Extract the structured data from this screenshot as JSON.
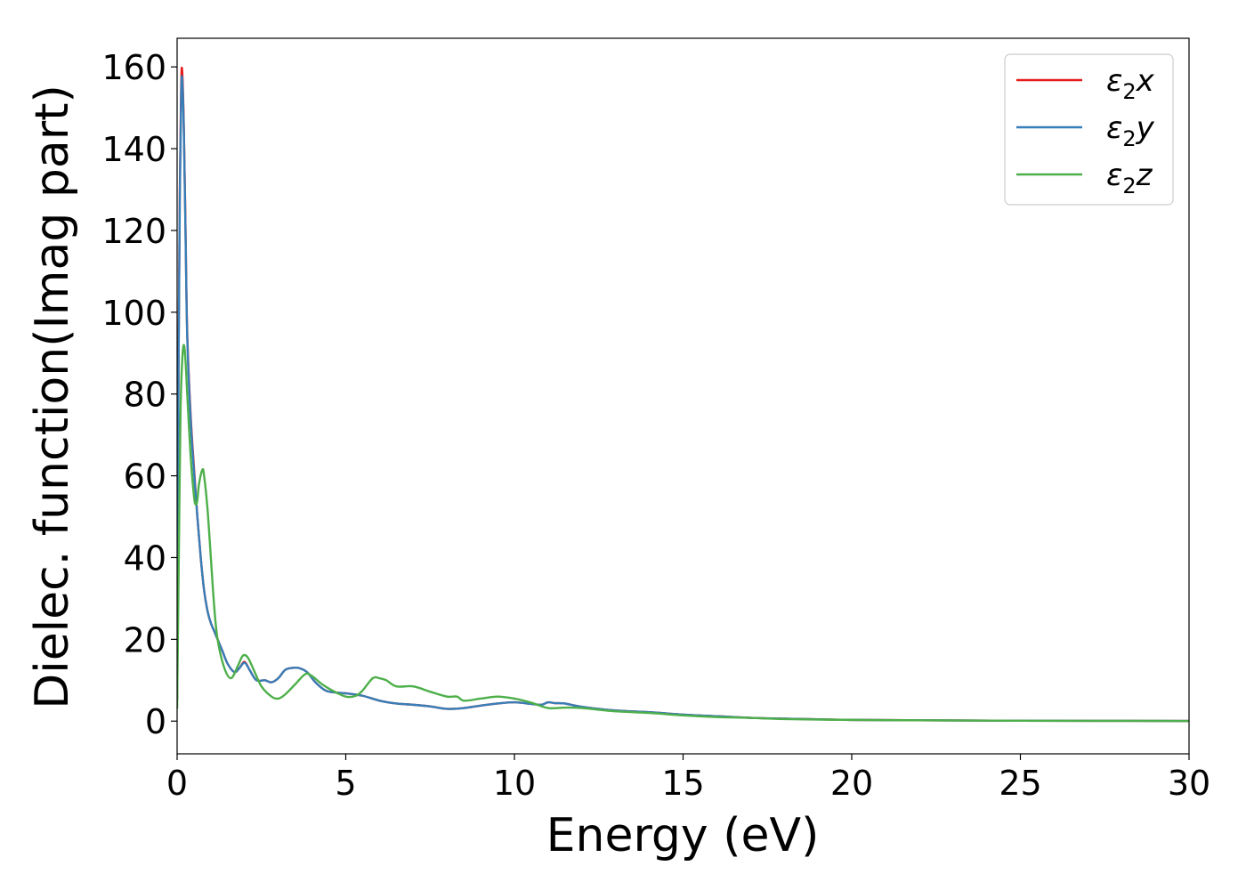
{
  "chart_data": {
    "type": "line",
    "title": "",
    "xlabel": "Energy (eV)",
    "ylabel": "Dielec. function(Imag part)",
    "xlim": [
      0,
      30
    ],
    "ylim": [
      -8,
      167
    ],
    "xticks": [
      0,
      5,
      10,
      15,
      20,
      25,
      30
    ],
    "xtick_labels": [
      "0",
      "5",
      "10",
      "15",
      "20",
      "25",
      "30"
    ],
    "yticks": [
      0,
      20,
      40,
      60,
      80,
      100,
      120,
      140,
      160
    ],
    "ytick_labels": [
      "0",
      "20",
      "40",
      "60",
      "80",
      "100",
      "120",
      "140",
      "160"
    ],
    "grid": false,
    "legend_position": "top-right",
    "series": [
      {
        "name": "ε2x",
        "legend_base": "ε",
        "legend_sub": "2",
        "legend_suffix": "x",
        "color": "#e41a1c",
        "x": [
          0,
          0.03,
          0.08,
          0.12,
          0.15,
          0.2,
          0.25,
          0.3,
          0.4,
          0.5,
          0.6,
          0.7,
          0.8,
          0.9,
          1.0,
          1.1,
          1.2,
          1.35,
          1.5,
          1.7,
          1.85,
          2.0,
          2.15,
          2.35,
          2.6,
          2.8,
          3.0,
          3.2,
          3.4,
          3.6,
          3.85,
          4.1,
          4.4,
          4.7,
          5.0,
          5.5,
          6.0,
          6.5,
          7.0,
          7.5,
          8.0,
          8.5,
          9.0,
          9.5,
          10.0,
          10.5,
          10.8,
          11.0,
          11.2,
          11.5,
          12.0,
          13.0,
          14.0,
          15.0,
          16.0,
          17.0,
          18.0,
          19.0,
          20.0,
          22.0,
          25.0,
          30.0
        ],
        "y": [
          5,
          70,
          130,
          155,
          159,
          145,
          120,
          95,
          75,
          62,
          50,
          40,
          32,
          27,
          24,
          22,
          20,
          17,
          14,
          12,
          13,
          14.5,
          12.5,
          10,
          10,
          9.5,
          10.5,
          12.5,
          13,
          13,
          12,
          9.5,
          7.5,
          7,
          6.8,
          6.2,
          5,
          4.3,
          4,
          3.6,
          3,
          3.2,
          3.8,
          4.3,
          4.6,
          4.2,
          4.0,
          4.6,
          4.4,
          4.3,
          3.5,
          2.6,
          2.2,
          1.6,
          1.2,
          0.8,
          0.6,
          0.45,
          0.3,
          0.2,
          0.1,
          0.05
        ]
      },
      {
        "name": "ε2y",
        "legend_base": "ε",
        "legend_sub": "2",
        "legend_suffix": "y",
        "color": "#377eb8",
        "x": [
          0,
          0.03,
          0.08,
          0.12,
          0.15,
          0.2,
          0.25,
          0.3,
          0.4,
          0.5,
          0.6,
          0.7,
          0.8,
          0.9,
          1.0,
          1.1,
          1.2,
          1.35,
          1.5,
          1.7,
          1.85,
          2.0,
          2.15,
          2.35,
          2.6,
          2.8,
          3.0,
          3.2,
          3.4,
          3.6,
          3.85,
          4.1,
          4.4,
          4.7,
          5.0,
          5.5,
          6.0,
          6.5,
          7.0,
          7.5,
          8.0,
          8.5,
          9.0,
          9.5,
          10.0,
          10.5,
          10.8,
          11.0,
          11.2,
          11.5,
          12.0,
          13.0,
          14.0,
          15.0,
          16.0,
          17.0,
          18.0,
          19.0,
          20.0,
          22.0,
          25.0,
          30.0
        ],
        "y": [
          5,
          68,
          128,
          153,
          157,
          144,
          119,
          94,
          74,
          61,
          50,
          40,
          32,
          27,
          24,
          22,
          20,
          17,
          14,
          12,
          13,
          14.3,
          12.5,
          10,
          10,
          9.5,
          10.5,
          12.5,
          13,
          13,
          12,
          9.5,
          7.5,
          7,
          6.8,
          6.2,
          5,
          4.3,
          4,
          3.6,
          3,
          3.2,
          3.8,
          4.3,
          4.6,
          4.2,
          4.0,
          4.6,
          4.4,
          4.3,
          3.5,
          2.6,
          2.2,
          1.6,
          1.2,
          0.8,
          0.6,
          0.45,
          0.3,
          0.2,
          0.1,
          0.05
        ]
      },
      {
        "name": "ε2z",
        "legend_base": "ε",
        "legend_sub": "2",
        "legend_suffix": "z",
        "color": "#4daf4a",
        "x": [
          0,
          0.05,
          0.1,
          0.15,
          0.2,
          0.25,
          0.3,
          0.4,
          0.5,
          0.55,
          0.6,
          0.65,
          0.75,
          0.8,
          0.9,
          1.0,
          1.1,
          1.2,
          1.4,
          1.6,
          1.8,
          1.95,
          2.1,
          2.3,
          2.5,
          2.8,
          3.0,
          3.2,
          3.5,
          3.8,
          4.0,
          4.3,
          4.6,
          5.0,
          5.3,
          5.5,
          5.8,
          6.0,
          6.2,
          6.5,
          7.0,
          7.5,
          8.0,
          8.3,
          8.5,
          9.0,
          9.5,
          10.0,
          10.5,
          11.0,
          11.5,
          12.0,
          13.0,
          14.0,
          15.0,
          16.0,
          17.0,
          18.0,
          20.0,
          22.0,
          25.0,
          30.0
        ],
        "y": [
          3,
          40,
          75,
          88,
          92,
          88,
          80,
          65,
          55,
          53,
          54,
          58,
          61.5,
          60,
          52,
          40,
          28,
          20,
          13,
          10.5,
          13.5,
          16,
          15.5,
          12,
          8.5,
          6,
          5.5,
          6.5,
          9,
          11.5,
          11,
          9,
          7.5,
          6,
          6.2,
          7.5,
          10.5,
          10.5,
          10,
          8.5,
          8.5,
          7.2,
          6,
          6,
          5,
          5.5,
          6,
          5.5,
          4.5,
          3.2,
          3.3,
          3.2,
          2.4,
          2.0,
          1.4,
          1.0,
          0.8,
          0.5,
          0.3,
          0.2,
          0.1,
          0.05
        ]
      }
    ]
  }
}
